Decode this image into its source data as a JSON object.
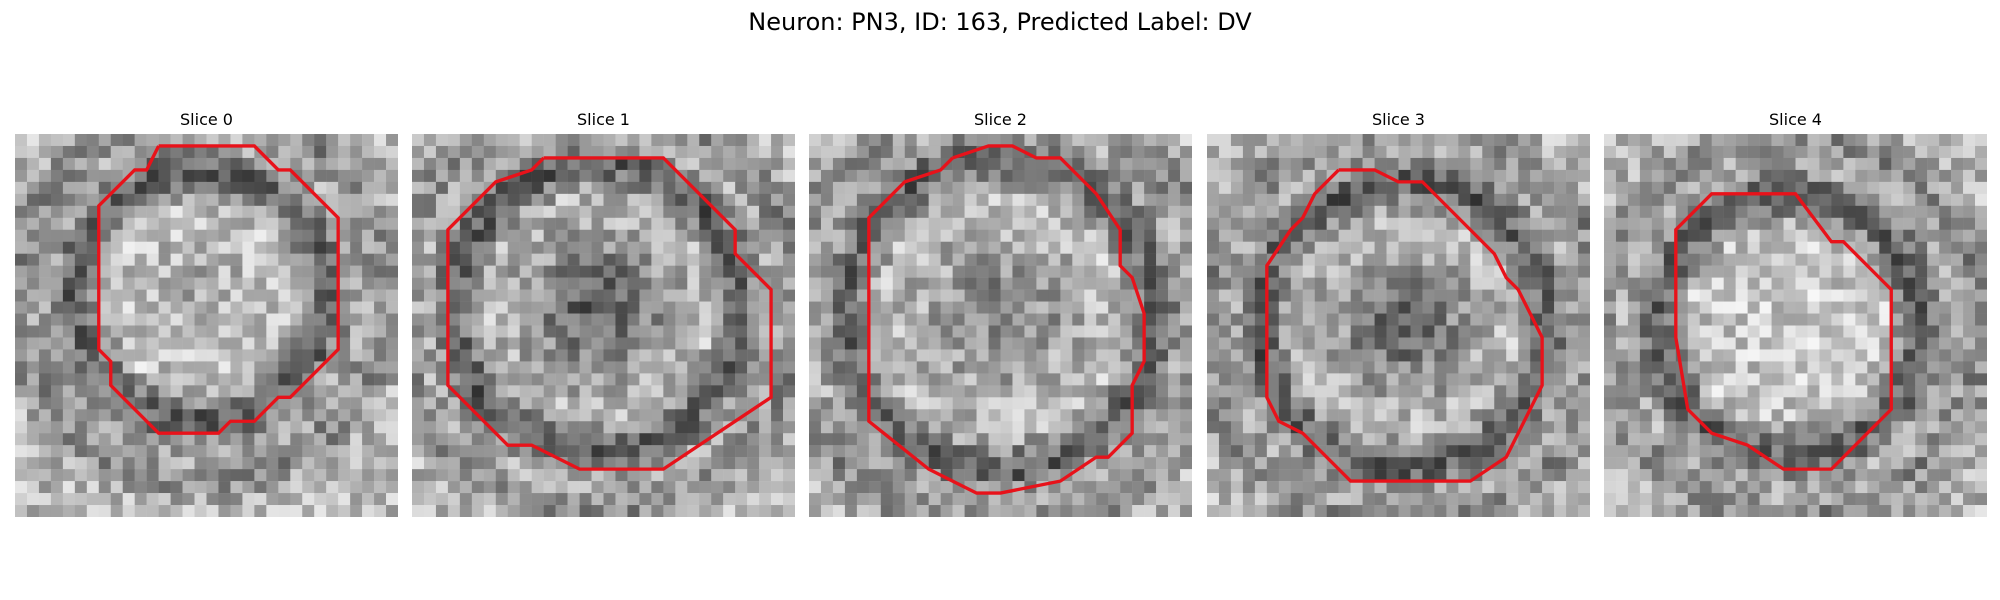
{
  "figure": {
    "title": "Neuron: PN3, ID: 163, Predicted Label: DV"
  },
  "colors": {
    "background": "#ffffff",
    "contour": "#e8121a",
    "image_colormap": "grayscale"
  },
  "panels": [
    {
      "title": "Slice 0",
      "grid_size": 32,
      "contour": [
        [
          12,
          1
        ],
        [
          20,
          1
        ],
        [
          22,
          3
        ],
        [
          23,
          3
        ],
        [
          27,
          7
        ],
        [
          27,
          18
        ],
        [
          23,
          22
        ],
        [
          22,
          22
        ],
        [
          20,
          24
        ],
        [
          18,
          24
        ],
        [
          17,
          25
        ],
        [
          12,
          25
        ],
        [
          8,
          21
        ],
        [
          8,
          19
        ],
        [
          7,
          18
        ],
        [
          7,
          6
        ],
        [
          10,
          3
        ],
        [
          11,
          3
        ],
        [
          12,
          1
        ]
      ]
    },
    {
      "title": "Slice 1",
      "grid_size": 32,
      "contour": [
        [
          11,
          2
        ],
        [
          21,
          2
        ],
        [
          24,
          5
        ],
        [
          27,
          8
        ],
        [
          27,
          10
        ],
        [
          30,
          13
        ],
        [
          30,
          22
        ],
        [
          21,
          28
        ],
        [
          14,
          28
        ],
        [
          10,
          26
        ],
        [
          8,
          26
        ],
        [
          3,
          21
        ],
        [
          3,
          8
        ],
        [
          7,
          4
        ],
        [
          10,
          3
        ],
        [
          11,
          2
        ]
      ]
    },
    {
      "title": "Slice 2",
      "grid_size": 32,
      "contour": [
        [
          12,
          2
        ],
        [
          15,
          1
        ],
        [
          17,
          1
        ],
        [
          19,
          2
        ],
        [
          21,
          2
        ],
        [
          24,
          5
        ],
        [
          26,
          8
        ],
        [
          26,
          11
        ],
        [
          27,
          12
        ],
        [
          28,
          15
        ],
        [
          28,
          19
        ],
        [
          27,
          21
        ],
        [
          27,
          25
        ],
        [
          25,
          27
        ],
        [
          24,
          27
        ],
        [
          21,
          29
        ],
        [
          16,
          30
        ],
        [
          14,
          30
        ],
        [
          12,
          29
        ],
        [
          10,
          28
        ],
        [
          5,
          24
        ],
        [
          5,
          7
        ],
        [
          8,
          4
        ],
        [
          11,
          3
        ],
        [
          12,
          2
        ]
      ]
    },
    {
      "title": "Slice 3",
      "grid_size": 32,
      "contour": [
        [
          11,
          3
        ],
        [
          14,
          3
        ],
        [
          16,
          4
        ],
        [
          18,
          4
        ],
        [
          22,
          8
        ],
        [
          24,
          10
        ],
        [
          25,
          12
        ],
        [
          26,
          13
        ],
        [
          27,
          15
        ],
        [
          28,
          17
        ],
        [
          28,
          21
        ],
        [
          27,
          23
        ],
        [
          26,
          25
        ],
        [
          25,
          27
        ],
        [
          22,
          29
        ],
        [
          12,
          29
        ],
        [
          8,
          25
        ],
        [
          6,
          24
        ],
        [
          5,
          22
        ],
        [
          5,
          11
        ],
        [
          7,
          8
        ],
        [
          8,
          7
        ],
        [
          9,
          5
        ],
        [
          11,
          3
        ]
      ]
    },
    {
      "title": "Slice 4",
      "grid_size": 32,
      "contour": [
        [
          13,
          5
        ],
        [
          16,
          5
        ],
        [
          19,
          9
        ],
        [
          20,
          9
        ],
        [
          23,
          12
        ],
        [
          24,
          13
        ],
        [
          24,
          23
        ],
        [
          22,
          25
        ],
        [
          19,
          28
        ],
        [
          15,
          28
        ],
        [
          12,
          26
        ],
        [
          9,
          25
        ],
        [
          7,
          23
        ],
        [
          6,
          17
        ],
        [
          6,
          8
        ],
        [
          9,
          5
        ],
        [
          13,
          5
        ]
      ]
    }
  ]
}
